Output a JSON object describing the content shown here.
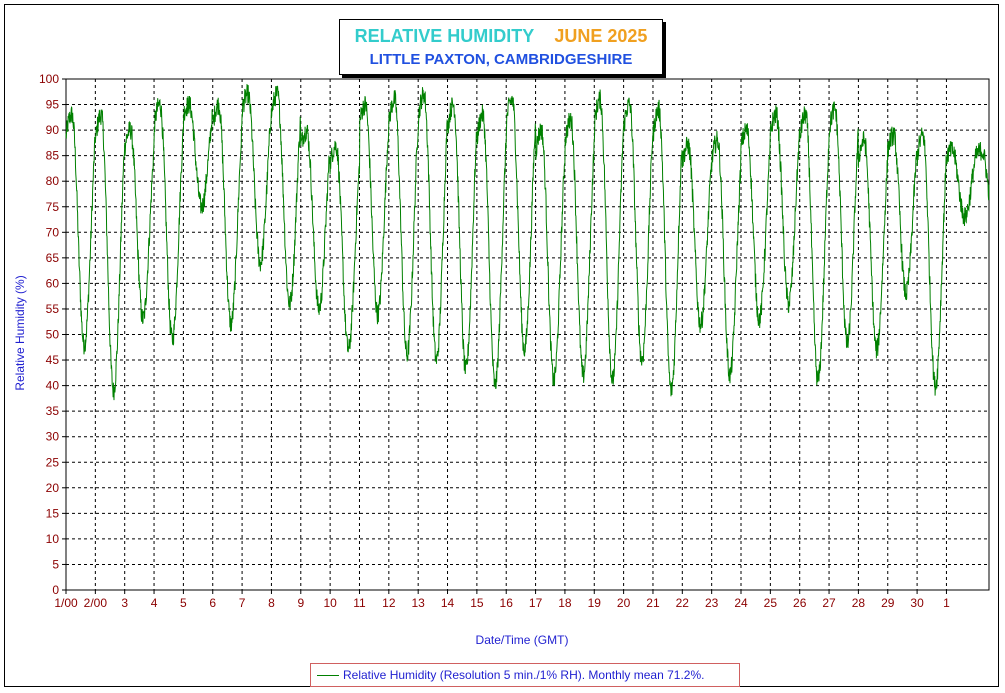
{
  "header": {
    "title_part1": "RELATIVE HUMIDITY",
    "title_part2": "JUNE 2025",
    "subtitle": "LITTLE PAXTON, CAMBRIDGESHIRE",
    "colors": {
      "title_part1": "#33cccc",
      "title_part2": "#f0a020",
      "subtitle": "#2050e0"
    }
  },
  "legend": {
    "label": "Relative Humidity (Resolution 5 min./1% RH). Monthly mean 71.2%."
  },
  "chart_data": {
    "type": "line",
    "title": "RELATIVE HUMIDITY JUNE 2025",
    "subtitle": "LITTLE PAXTON, CAMBRIDGESHIRE",
    "xlabel": "Date/Time (GMT)",
    "ylabel": "Relative Humidity (%)",
    "ylim": [
      0,
      100
    ],
    "y_ticks": [
      0,
      5,
      10,
      15,
      20,
      25,
      30,
      35,
      40,
      45,
      50,
      55,
      60,
      65,
      70,
      75,
      80,
      85,
      90,
      95,
      100
    ],
    "xlim_days": [
      0,
      31.45
    ],
    "x_tick_labels": [
      "1/00",
      "2/00",
      "3",
      "4",
      "5",
      "6",
      "7",
      "8",
      "9",
      "10",
      "11",
      "12",
      "13",
      "14",
      "15",
      "16",
      "17",
      "18",
      "19",
      "20",
      "21",
      "22",
      "23",
      "24",
      "25",
      "26",
      "27",
      "28",
      "29",
      "30",
      "1"
    ],
    "grid": true,
    "line_color": "#008000",
    "series": [
      {
        "name": "Relative Humidity (Resolution 5 min./1% RH). Monthly mean 71.2%.",
        "daily_extremes": [
          {
            "day": 1,
            "min": 48,
            "max": 93
          },
          {
            "day": 2,
            "min": 39,
            "max": 93
          },
          {
            "day": 3,
            "min": 53,
            "max": 90
          },
          {
            "day": 4,
            "min": 49,
            "max": 95
          },
          {
            "day": 5,
            "min": 75,
            "max": 95
          },
          {
            "day": 6,
            "min": 52,
            "max": 95
          },
          {
            "day": 7,
            "min": 64,
            "max": 97
          },
          {
            "day": 8,
            "min": 56,
            "max": 97
          },
          {
            "day": 9,
            "min": 55,
            "max": 90
          },
          {
            "day": 10,
            "min": 47,
            "max": 87
          },
          {
            "day": 11,
            "min": 54,
            "max": 95
          },
          {
            "day": 12,
            "min": 46,
            "max": 96
          },
          {
            "day": 13,
            "min": 45,
            "max": 97
          },
          {
            "day": 14,
            "min": 43,
            "max": 95
          },
          {
            "day": 15,
            "min": 40,
            "max": 93
          },
          {
            "day": 16,
            "min": 47,
            "max": 96
          },
          {
            "day": 17,
            "min": 41,
            "max": 90
          },
          {
            "day": 18,
            "min": 42,
            "max": 92
          },
          {
            "day": 19,
            "min": 41,
            "max": 96
          },
          {
            "day": 20,
            "min": 45,
            "max": 95
          },
          {
            "day": 21,
            "min": 39,
            "max": 94
          },
          {
            "day": 22,
            "min": 52,
            "max": 87
          },
          {
            "day": 23,
            "min": 42,
            "max": 88
          },
          {
            "day": 24,
            "min": 53,
            "max": 90
          },
          {
            "day": 25,
            "min": 56,
            "max": 93
          },
          {
            "day": 26,
            "min": 41,
            "max": 93
          },
          {
            "day": 27,
            "min": 48,
            "max": 94
          },
          {
            "day": 28,
            "min": 47,
            "max": 88
          },
          {
            "day": 29,
            "min": 58,
            "max": 89
          },
          {
            "day": 30,
            "min": 40,
            "max": 89
          },
          {
            "day": 31,
            "min": 73,
            "max": 86
          }
        ],
        "mean": 71.2
      }
    ]
  }
}
